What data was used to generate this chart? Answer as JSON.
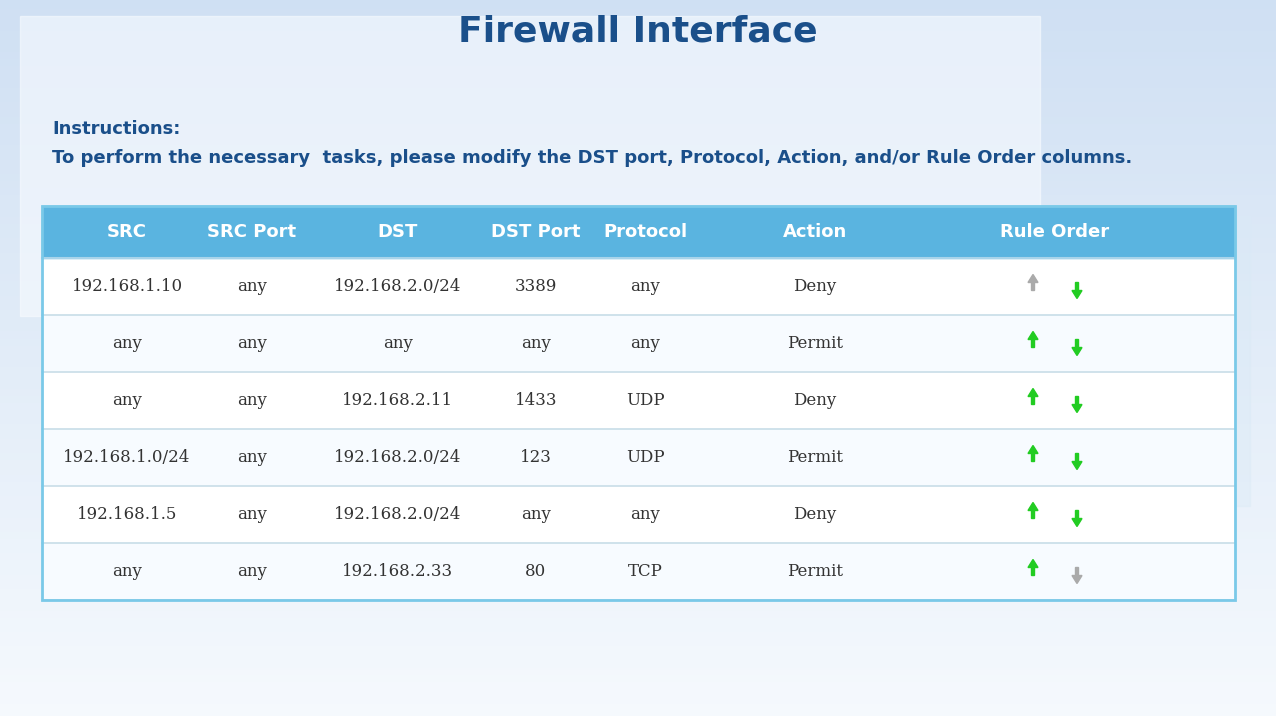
{
  "title": "Firewall Interface",
  "instructions_label": "Instructions:",
  "instructions_text": "To perform the necessary  tasks, please modify the DST port, Protocol, Action, and/or Rule Order columns.",
  "header": [
    "SRC",
    "SRC Port",
    "DST",
    "DST Port",
    "Protocol",
    "Action",
    "Rule Order"
  ],
  "rows": [
    [
      "192.168.1.10",
      "any",
      "192.168.2.0/24",
      "3389",
      "any",
      "Deny",
      "up_gray_down_green"
    ],
    [
      "any",
      "any",
      "any",
      "any",
      "any",
      "Permit",
      "up_green_down_green"
    ],
    [
      "any",
      "any",
      "192.168.2.11",
      "1433",
      "UDP",
      "Deny",
      "up_green_down_green"
    ],
    [
      "192.168.1.0/24",
      "any",
      "192.168.2.0/24",
      "123",
      "UDP",
      "Permit",
      "up_green_down_green"
    ],
    [
      "192.168.1.5",
      "any",
      "192.168.2.0/24",
      "any",
      "any",
      "Deny",
      "up_green_down_green"
    ],
    [
      "any",
      "any",
      "192.168.2.33",
      "80",
      "TCP",
      "Permit",
      "up_green_down_gray"
    ]
  ],
  "header_bg": "#5ab4e0",
  "header_text_color": "#ffffff",
  "title_color": "#1a4f8a",
  "instructions_label_color": "#1a4f8a",
  "instructions_text_color": "#1a4f8a",
  "green_arrow": "#22cc22",
  "gray_arrow": "#aaaaaa",
  "table_border_color": "#7ac9e8",
  "row_divider_color": "#c8dde8",
  "cell_text_color": "#333333"
}
